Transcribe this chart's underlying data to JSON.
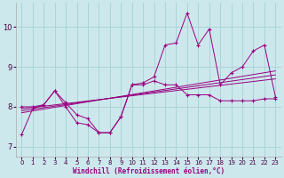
{
  "background_color": "#cce8ec",
  "grid_color": "#aad4d8",
  "line_color": "#990080",
  "xlabel": "Windchill (Refroidissement éolien,°C)",
  "xlim": [
    -0.5,
    23.5
  ],
  "ylim": [
    6.75,
    10.6
  ],
  "yticks": [
    7,
    8,
    9,
    10
  ],
  "xticks": [
    0,
    1,
    2,
    3,
    4,
    5,
    6,
    7,
    8,
    9,
    10,
    11,
    12,
    13,
    14,
    15,
    16,
    17,
    18,
    19,
    20,
    21,
    22,
    23
  ],
  "series_jagged_x": [
    0,
    1,
    2,
    3,
    4,
    5,
    6,
    7,
    8,
    9,
    10,
    11,
    12,
    13,
    14,
    15,
    16,
    17,
    18,
    19,
    20,
    21,
    22,
    23
  ],
  "series_jagged_y": [
    7.3,
    7.95,
    8.05,
    8.4,
    8.0,
    7.6,
    7.55,
    7.35,
    7.35,
    7.75,
    8.55,
    8.6,
    8.75,
    9.55,
    9.6,
    10.35,
    9.55,
    9.95,
    8.55,
    8.85,
    9.0,
    9.4,
    9.55,
    8.25
  ],
  "series_flat_x": [
    0,
    1,
    2,
    3,
    4,
    5,
    6,
    7,
    8,
    9,
    10,
    11,
    12,
    13,
    14,
    15,
    16,
    17,
    18,
    19,
    20,
    21,
    22,
    23
  ],
  "series_flat_y": [
    8.0,
    8.0,
    8.05,
    8.4,
    8.1,
    7.8,
    7.7,
    7.35,
    7.35,
    7.75,
    8.55,
    8.55,
    8.65,
    8.55,
    8.55,
    8.3,
    8.3,
    8.3,
    8.15,
    8.15,
    8.15,
    8.15,
    8.2,
    8.2
  ],
  "regline1_x": [
    0,
    23
  ],
  "regline1_y": [
    7.95,
    8.7
  ],
  "regline2_x": [
    0,
    23
  ],
  "regline2_y": [
    7.9,
    8.8
  ],
  "regline3_x": [
    0,
    23
  ],
  "regline3_y": [
    7.85,
    8.9
  ]
}
